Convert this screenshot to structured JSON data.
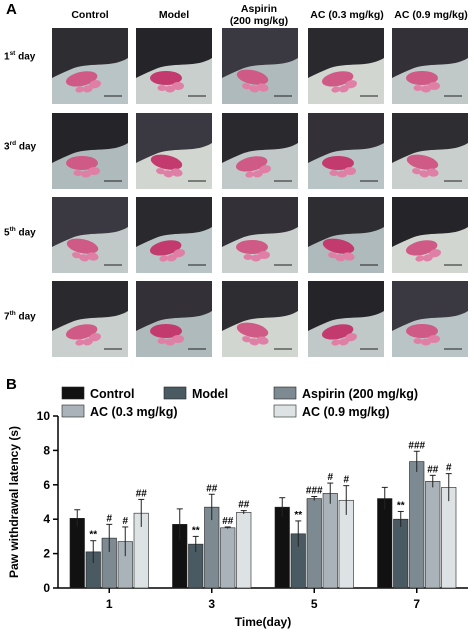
{
  "figure": {
    "panel_a": {
      "letter": "A",
      "columns": [
        {
          "line1": "Control",
          "line2": ""
        },
        {
          "line1": "Model",
          "line2": ""
        },
        {
          "line1": "Aspirin",
          "line2": "(200 mg/kg)"
        },
        {
          "line1": "AC (0.3 mg/kg)",
          "line2": ""
        },
        {
          "line1": "AC (0.9 mg/kg)",
          "line2": ""
        }
      ],
      "rows": [
        {
          "num": "1",
          "sup": "st",
          "rest": " day"
        },
        {
          "num": "3",
          "sup": "rd",
          "rest": " day"
        },
        {
          "num": "5",
          "sup": "th",
          "rest": " day"
        },
        {
          "num": "7",
          "sup": "th",
          "rest": " day"
        }
      ]
    },
    "panel_b": {
      "letter": "B"
    }
  },
  "chart_data": {
    "type": "bar",
    "title": "",
    "xlabel": "Time(day)",
    "ylabel": "Paw withdrawal latency (s)",
    "ylim": [
      0,
      10
    ],
    "yticks": [
      0,
      2,
      4,
      6,
      8,
      10
    ],
    "categories": [
      "1",
      "3",
      "5",
      "7"
    ],
    "legend_position": "top",
    "series": [
      {
        "name": "Control",
        "color": "#111111",
        "values": [
          4.05,
          3.7,
          4.7,
          5.2
        ],
        "errors": [
          0.5,
          0.9,
          0.55,
          0.65
        ],
        "annotations": [
          "",
          "",
          "",
          ""
        ]
      },
      {
        "name": "Model",
        "color": "#4a5a63",
        "values": [
          2.1,
          2.55,
          3.15,
          4.0
        ],
        "errors": [
          0.65,
          0.45,
          0.75,
          0.45
        ],
        "annotations": [
          "**",
          "**",
          "**",
          "**"
        ]
      },
      {
        "name": "Aspirin (200 mg/kg)",
        "color": "#7d8a91",
        "values": [
          2.9,
          4.7,
          5.2,
          7.35
        ],
        "errors": [
          0.8,
          0.75,
          0.12,
          0.6
        ],
        "annotations": [
          "#",
          "##",
          "###",
          "###"
        ]
      },
      {
        "name": "AC (0.3 mg/kg)",
        "color": "#a9b3b9",
        "values": [
          2.7,
          3.5,
          5.5,
          6.2
        ],
        "errors": [
          0.85,
          0.05,
          0.6,
          0.35
        ],
        "annotations": [
          "#",
          "##",
          "#",
          "##"
        ]
      },
      {
        "name": "AC (0.9 mg/kg)",
        "color": "#dde3e5",
        "values": [
          4.35,
          4.4,
          5.1,
          5.85
        ],
        "errors": [
          0.8,
          0.1,
          0.85,
          0.8
        ],
        "annotations": [
          "##",
          "##",
          "#",
          "#"
        ]
      }
    ]
  }
}
